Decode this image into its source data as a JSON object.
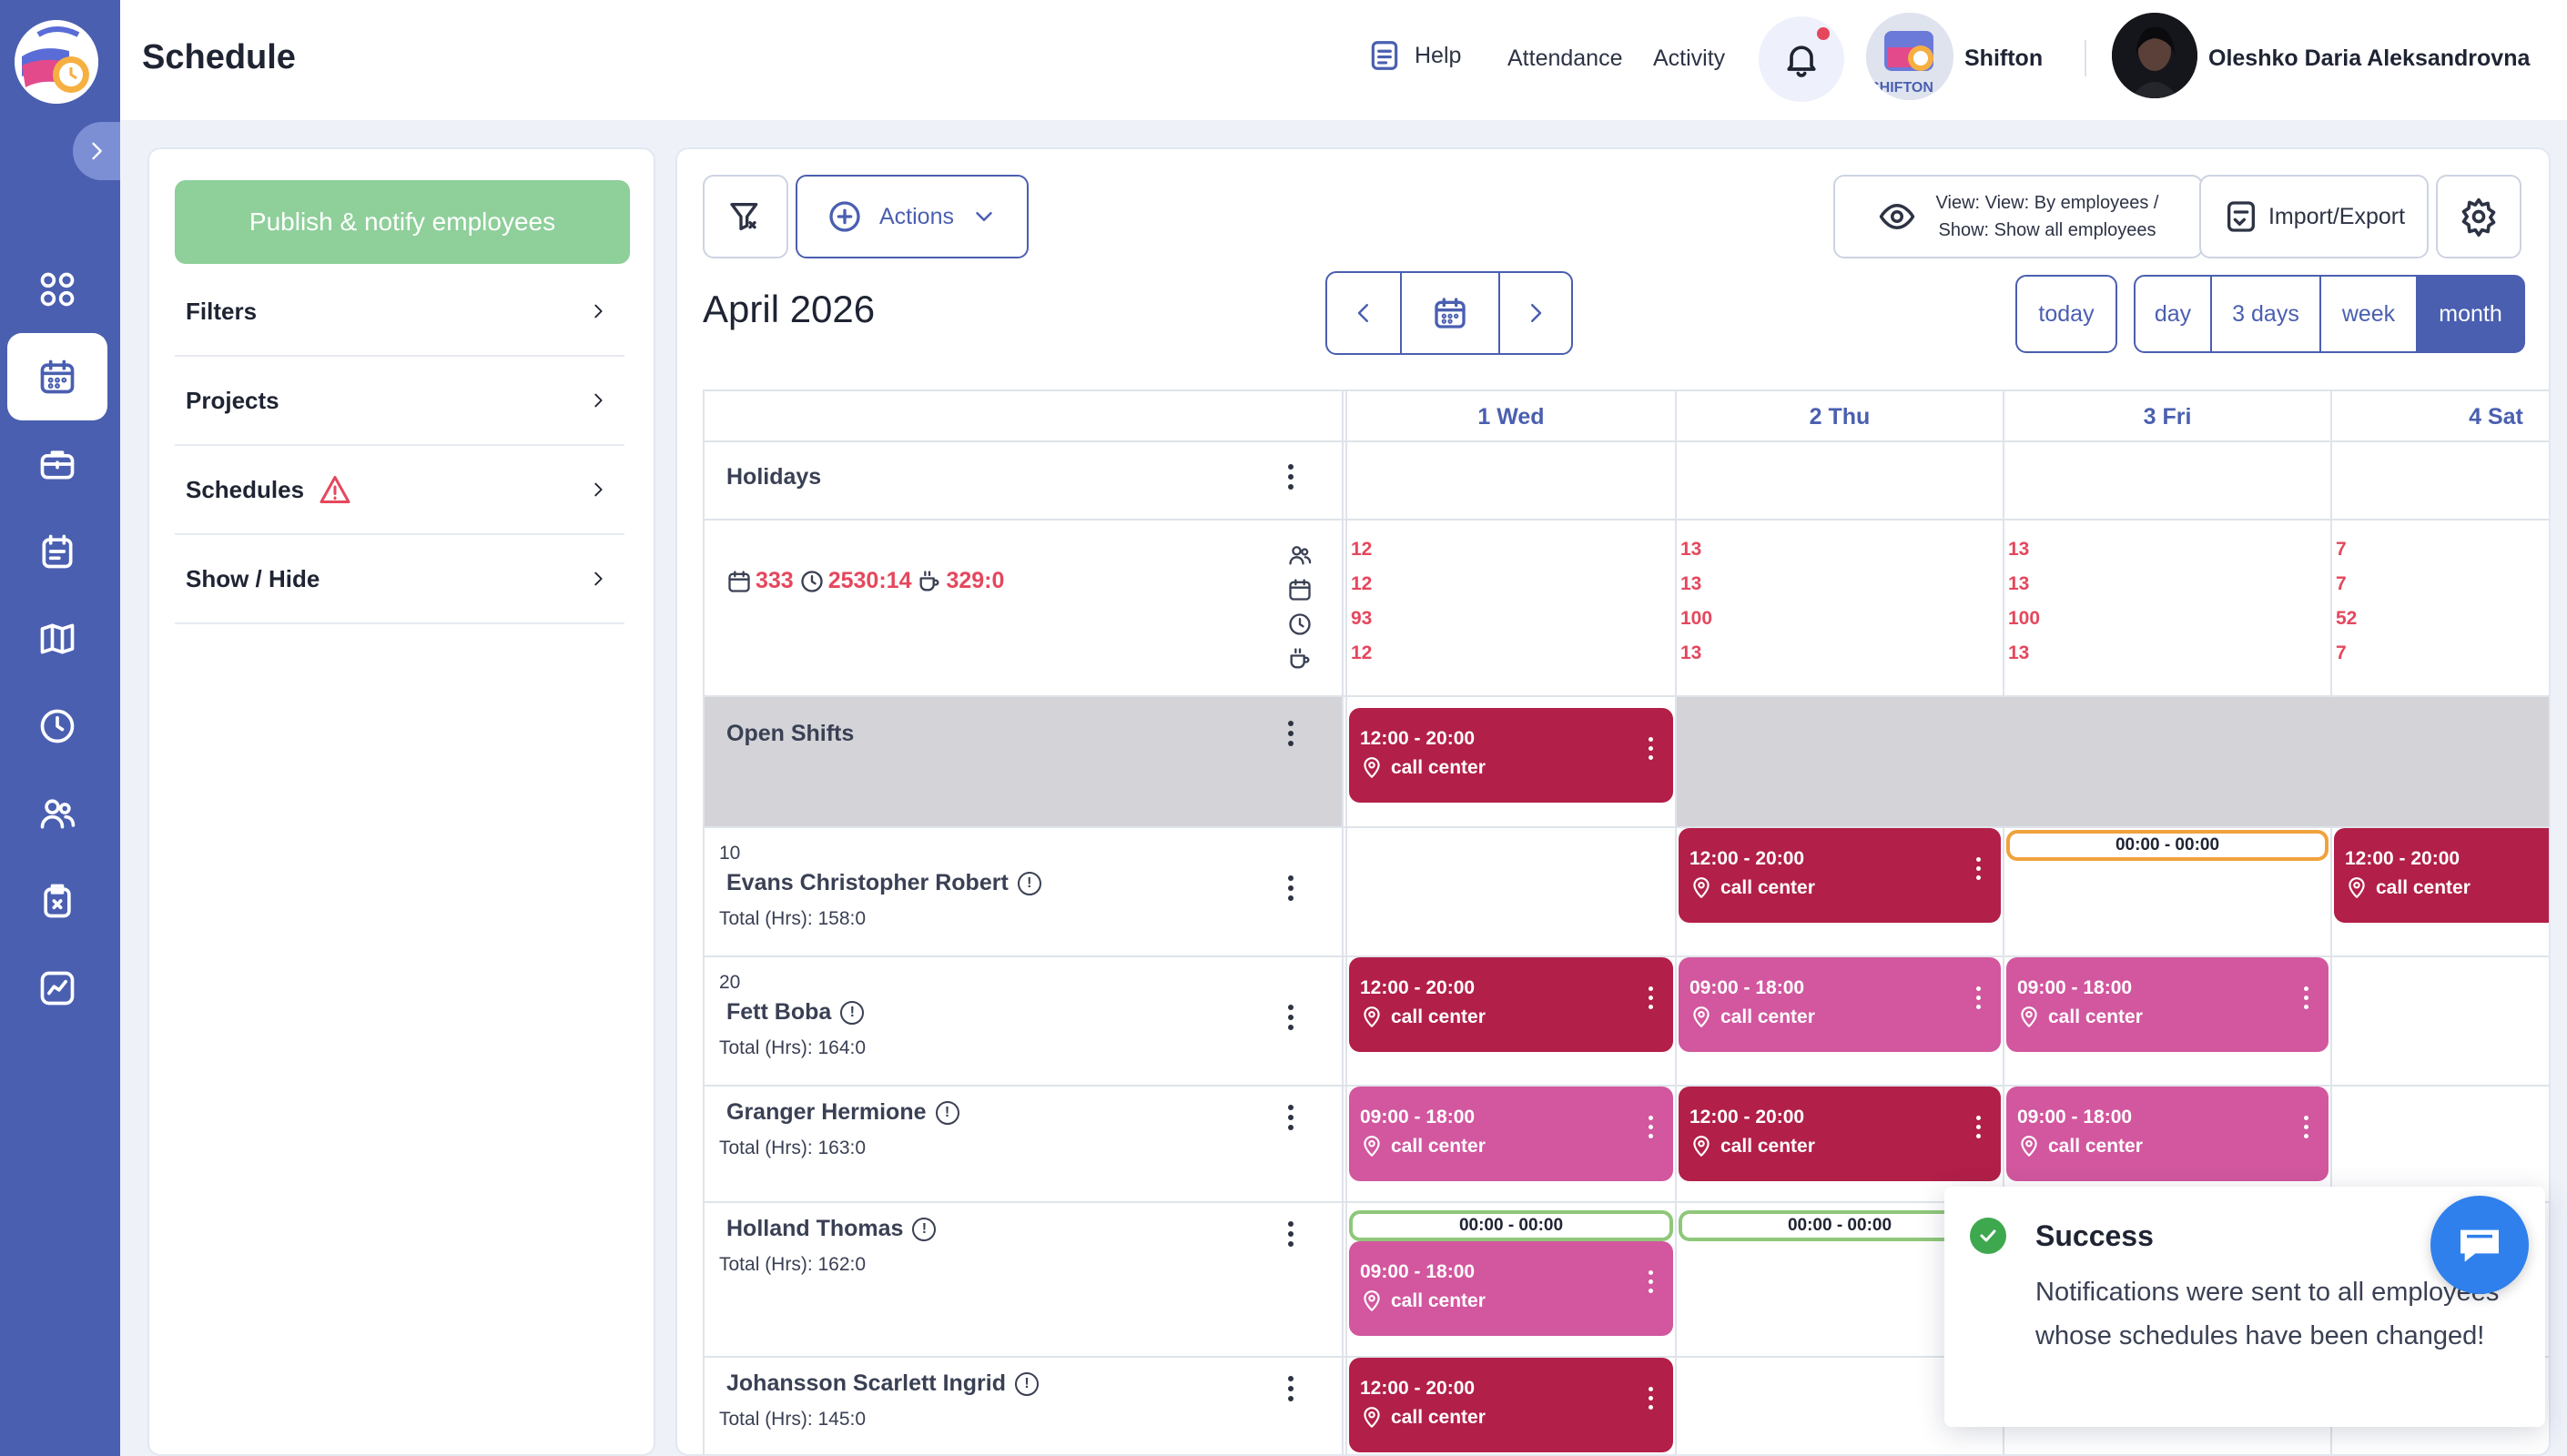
{
  "header": {
    "title": "Schedule",
    "help": "Help",
    "attendance": "Attendance",
    "activity": "Activity",
    "company": "Shifton",
    "company_logo_text": "SHIFTON",
    "user": "Oleshko Daria Aleksandrovna"
  },
  "sidebar": {
    "publish": "Publish & notify employees",
    "items": [
      {
        "label": "Filters"
      },
      {
        "label": "Projects"
      },
      {
        "label": "Schedules"
      },
      {
        "label": "Show / Hide"
      }
    ]
  },
  "toolbar": {
    "actions": "Actions",
    "view_line1": "View: View: By employees /",
    "view_line2": "Show: Show all employees",
    "import_export": "Import/Export",
    "month_title": "April 2026",
    "today": "today",
    "views": [
      "day",
      "3 days",
      "week",
      "month"
    ],
    "active_view": "month"
  },
  "grid": {
    "days": [
      "1 Wed",
      "2 Thu",
      "3 Fri",
      "4 Sat"
    ],
    "holidays": "Holidays",
    "summary": {
      "dates": "333",
      "hours": "2530:14",
      "breaks": "329:0"
    },
    "stats": [
      [
        "12",
        "12",
        "93",
        "12"
      ],
      [
        "13",
        "13",
        "100",
        "13"
      ],
      [
        "13",
        "13",
        "100",
        "13"
      ],
      [
        "7",
        "7",
        "52",
        "7"
      ]
    ],
    "open_shifts": "Open Shifts",
    "employees": [
      {
        "num": "10",
        "name": "Evans Christopher Robert",
        "total": "Total (Hrs): 158:0"
      },
      {
        "num": "20",
        "name": "Fett Boba",
        "total": "Total (Hrs): 164:0"
      },
      {
        "num": "",
        "name": "Granger Hermione",
        "total": "Total (Hrs): 163:0"
      },
      {
        "num": "",
        "name": "Holland Thomas",
        "total": "Total (Hrs): 162:0"
      },
      {
        "num": "",
        "name": "Johansson Scarlett Ingrid",
        "total": "Total (Hrs): 145:0"
      }
    ],
    "shift_times": {
      "evening": "12:00 - 20:00",
      "day": "09:00 - 18:00",
      "zero": "00:00 - 00:00"
    },
    "location": "call center"
  },
  "toast": {
    "title": "Success",
    "message": "Notifications were sent to all employees whose schedules have been changed!"
  },
  "colors": {
    "accent": "#4a5fb0",
    "shift_dark": "#b21f48",
    "shift_pink": "#d2579e",
    "publish": "#8ecf9a",
    "success": "#3ea84f"
  }
}
